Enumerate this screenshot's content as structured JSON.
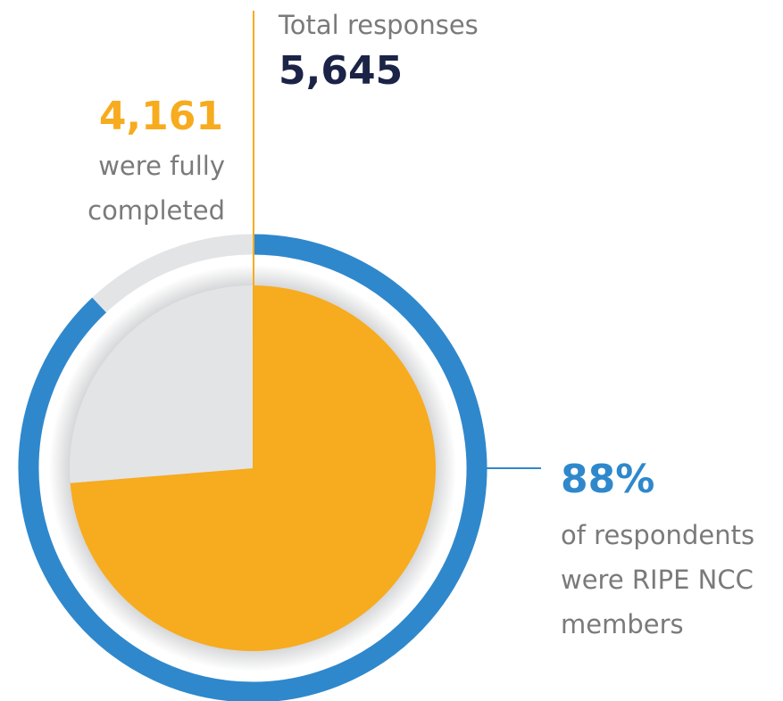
{
  "chart_data": {
    "type": "donut",
    "total": {
      "label": "Total responses",
      "value": 5645,
      "value_label": "5,645"
    },
    "completed": {
      "value": 4161,
      "value_label": "4,161",
      "lines": [
        "were fully",
        "completed"
      ],
      "color": "#f7ab1e"
    },
    "members": {
      "value": 88,
      "value_label": "88%",
      "lines": [
        "of respondents",
        "were RIPE NCC",
        "members"
      ],
      "color": "#2f88cc"
    },
    "rest_color": "#e3e4e6"
  }
}
